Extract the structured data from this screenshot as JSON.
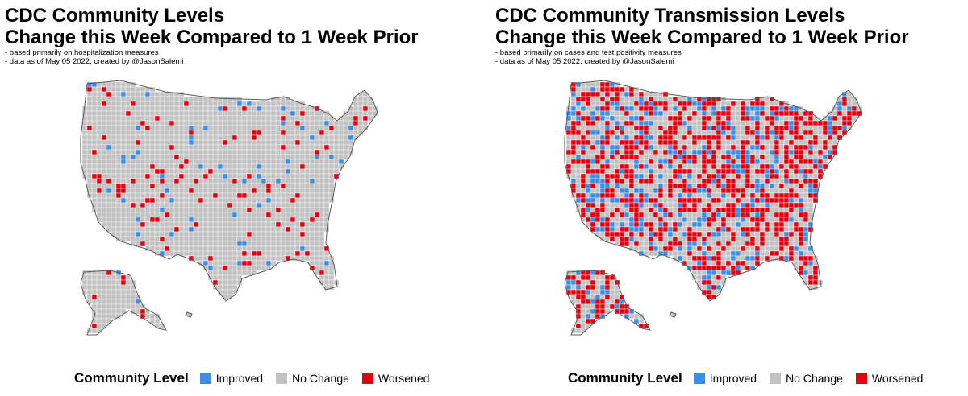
{
  "colors": {
    "improved": "#3b8ee8",
    "no_change": "#c2c2c2",
    "worsened": "#e3000f",
    "border": "#5a5a5a"
  },
  "legend": {
    "title": "Community Level",
    "items": [
      {
        "label": "Improved",
        "color": "#3b8ee8"
      },
      {
        "label": "No Change",
        "color": "#c2c2c2"
      },
      {
        "label": "Worsened",
        "color": "#e3000f"
      }
    ]
  },
  "left": {
    "title_line1": "CDC Community Levels",
    "title_line2": "Change this Week Compared to 1 Week Prior",
    "note1": "- based primarily on hospitalization measures",
    "note2": "- data as of May 05 2022, created by @JasonSalemi",
    "improved_share": 0.03,
    "worsened_share": 0.07
  },
  "right": {
    "title_line1": "CDC Community Transmission Levels",
    "title_line2": "Change this Week Compared to 1 Week Prior",
    "note1": "- based primarily on cases and test positivity measures",
    "note2": "- data as of May 05 2022, created by @JasonSalemi",
    "improved_share": 0.18,
    "worsened_share": 0.38
  }
}
